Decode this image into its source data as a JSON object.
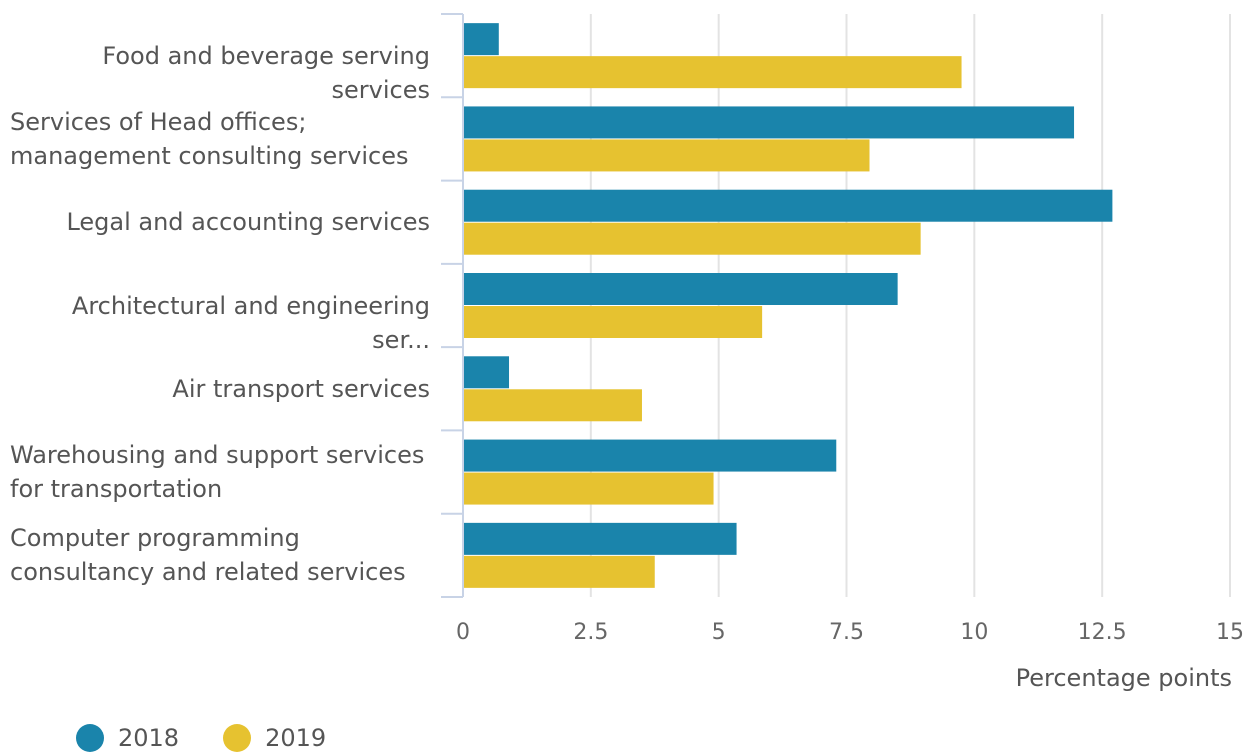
{
  "chart_data": {
    "type": "bar",
    "orientation": "horizontal",
    "categories": [
      "Food and beverage serving services",
      "Services of Head offices; management consulting services",
      "Legal and accounting services",
      "Architectural and engineering ser...",
      "Air transport services",
      "Warehousing and support services for transportation",
      "Computer programming consultancy and related services"
    ],
    "category_lines": [
      [
        "Food and beverage serving services"
      ],
      [
        "Services of Head offices;",
        "management consulting services"
      ],
      [
        "Legal and accounting services"
      ],
      [
        "Architectural and engineering ser..."
      ],
      [
        "Air transport services"
      ],
      [
        "Warehousing and support services",
        "for transportation"
      ],
      [
        "Computer programming",
        "consultancy and related services"
      ]
    ],
    "series": [
      {
        "name": "2018",
        "color": "#1a84ab",
        "values": [
          0.7,
          11.95,
          12.7,
          8.5,
          0.9,
          7.3,
          5.35
        ]
      },
      {
        "name": "2019",
        "color": "#e6c230",
        "values": [
          9.75,
          7.95,
          8.95,
          5.85,
          3.5,
          4.9,
          3.75
        ]
      }
    ],
    "xlabel": "Percentage points",
    "xlim": [
      0,
      15
    ],
    "xticks": [
      "0",
      "2.5",
      "5",
      "7.5",
      "10",
      "12.5",
      "15"
    ],
    "grid": true,
    "legend_position": "bottom-left"
  }
}
